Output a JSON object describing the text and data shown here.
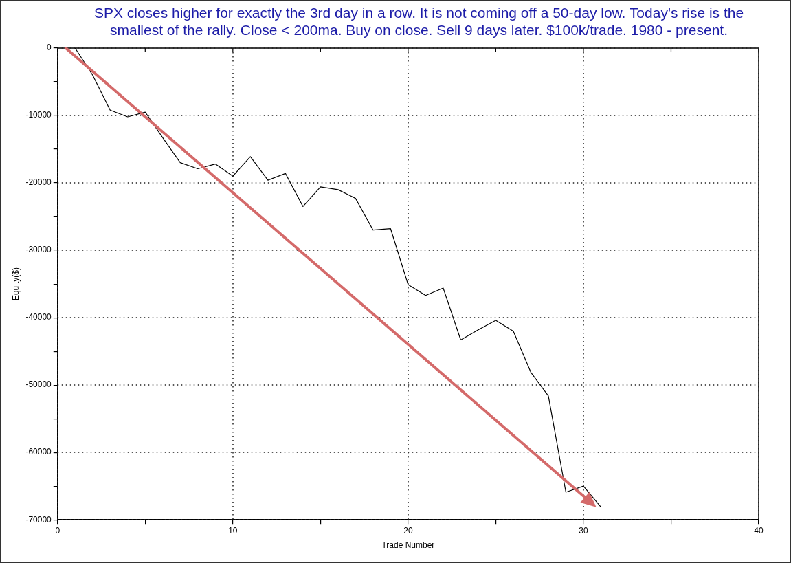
{
  "chart_data": {
    "type": "line",
    "title": "SPX closes higher for exactly the 3rd day in a row. It is not coming off a 50-day low. Today's rise is the smallest of the rally. Close < 200ma. Buy on close. Sell 9 days later. $100k/trade. 1980 - present.",
    "xlabel": "Trade Number",
    "ylabel": "Equity($)",
    "x": [
      1,
      2,
      3,
      4,
      5,
      6,
      7,
      8,
      9,
      10,
      11,
      12,
      13,
      14,
      15,
      16,
      17,
      18,
      19,
      20,
      21,
      22,
      23,
      24,
      25,
      26,
      27,
      28,
      29,
      30,
      31
    ],
    "series": [
      {
        "color": "#000000",
        "values": [
          0,
          -4000,
          -9200,
          -10200,
          -9500,
          -13300,
          -17000,
          -17900,
          -17200,
          -19000,
          -16100,
          -19600,
          -18600,
          -23500,
          -20600,
          -21000,
          -22300,
          -27000,
          -26800,
          -35100,
          -36700,
          -35600,
          -43300,
          -41800,
          -40400,
          -42000,
          -48100,
          -51600,
          -65900,
          -65000,
          -68100
        ]
      }
    ],
    "xlim": [
      0,
      40
    ],
    "xticks": [
      0,
      {
        "value": 5,
        "label": null
      },
      10,
      {
        "value": 15,
        "label": null
      },
      20,
      {
        "value": 25,
        "label": null
      },
      30,
      {
        "value": 35,
        "label": null
      },
      40
    ],
    "ylim": [
      -70000,
      0
    ],
    "yticks": [
      -70000,
      {
        "value": -65000,
        "label": null
      },
      -60000,
      {
        "value": -55000,
        "label": null
      },
      -50000,
      {
        "value": -45000,
        "label": null
      },
      -40000,
      {
        "value": -35000,
        "label": null
      },
      -30000,
      {
        "value": -25000,
        "label": null
      },
      -20000,
      {
        "value": -15000,
        "label": null
      },
      -10000,
      {
        "value": -5000,
        "label": null
      },
      0
    ],
    "grid": true,
    "legend": false,
    "marker": "none",
    "line_style": "solid"
  }
}
